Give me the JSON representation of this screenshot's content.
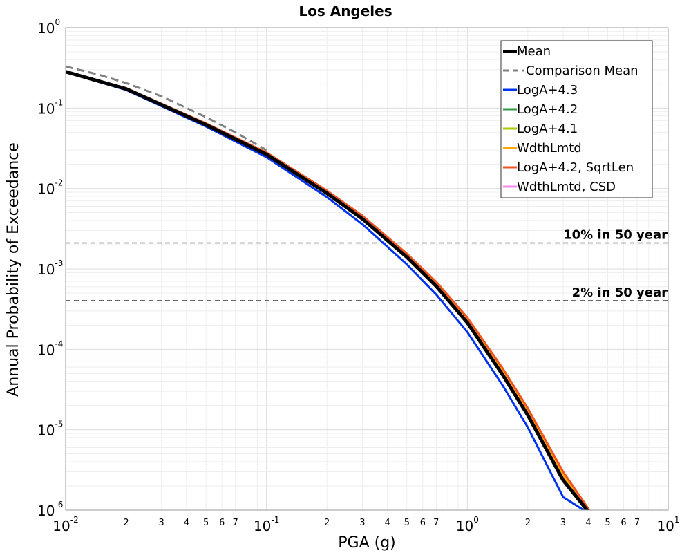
{
  "chart_data": {
    "type": "line",
    "title": "Los Angeles",
    "xlabel": "PGA (g)",
    "ylabel": "Annual Probability of Exceedance",
    "xscale": "log",
    "yscale": "log",
    "xlim": [
      0.01,
      10
    ],
    "ylim": [
      1e-06,
      1
    ],
    "x_major_ticks": [
      {
        "base": "10",
        "exp": "-2",
        "value": 0.01
      },
      {
        "base": "10",
        "exp": "-1",
        "value": 0.1
      },
      {
        "base": "10",
        "exp": "0",
        "value": 1
      },
      {
        "base": "10",
        "exp": "1",
        "value": 10
      }
    ],
    "x_minor_tick_labels": [
      "2",
      "3",
      "4",
      "5",
      "6",
      "7"
    ],
    "y_major_ticks": [
      {
        "base": "10",
        "exp": "0",
        "value": 1
      },
      {
        "base": "10",
        "exp": "-1",
        "value": 0.1
      },
      {
        "base": "10",
        "exp": "-2",
        "value": 0.01
      },
      {
        "base": "10",
        "exp": "-3",
        "value": 0.001
      },
      {
        "base": "10",
        "exp": "-4",
        "value": 0.0001
      },
      {
        "base": "10",
        "exp": "-5",
        "value": 1e-05
      },
      {
        "base": "10",
        "exp": "-6",
        "value": 1e-06
      }
    ],
    "grid": true,
    "legend_position": "top-right",
    "reference_lines": [
      {
        "label": "10% in 50 year",
        "y": 0.0021
      },
      {
        "label": "2% in 50 year",
        "y": 0.000404
      }
    ],
    "series": [
      {
        "name": "LogA+4.3",
        "color": "#0033ee",
        "x": [
          0.01,
          0.02,
          0.05,
          0.1,
          0.2,
          0.3,
          0.5,
          0.7,
          1.0,
          1.5,
          2.0,
          3.0,
          3.8
        ],
        "y": [
          0.28,
          0.168,
          0.059,
          0.0245,
          0.0078,
          0.0036,
          0.00114,
          0.00048,
          0.000164,
          3.55e-05,
          1.07e-05,
          1.45e-06,
          1e-06
        ]
      },
      {
        "name": "LogA+4.2",
        "color": "#339944",
        "x": [
          0.01,
          0.02,
          0.05,
          0.1,
          0.2,
          0.3,
          0.5,
          0.7,
          1.0,
          1.5,
          2.0,
          3.0,
          3.95
        ],
        "y": [
          0.283,
          0.173,
          0.062,
          0.0265,
          0.0087,
          0.0042,
          0.0014,
          0.00061,
          0.000215,
          4.8e-05,
          1.52e-05,
          2.35e-06,
          1e-06
        ]
      },
      {
        "name": "LogA+4.1",
        "color": "#aacc00",
        "x": [
          0.01,
          0.02,
          0.05,
          0.1,
          0.2,
          0.3,
          0.5,
          0.7,
          1.0,
          1.5,
          2.0,
          3.0,
          3.95
        ],
        "y": [
          0.284,
          0.174,
          0.0625,
          0.0268,
          0.0088,
          0.00425,
          0.00142,
          0.00062,
          0.000218,
          4.9e-05,
          1.55e-05,
          2.4e-06,
          1e-06
        ]
      },
      {
        "name": "WdthLmtd",
        "color": "#ffaa00",
        "x": [
          0.01,
          0.02,
          0.05,
          0.1,
          0.2,
          0.3,
          0.5,
          0.7,
          1.0,
          1.5,
          2.0,
          3.0,
          4.0
        ],
        "y": [
          0.285,
          0.176,
          0.0635,
          0.0275,
          0.0091,
          0.0044,
          0.00148,
          0.00065,
          0.000232,
          5.3e-05,
          1.68e-05,
          2.7e-06,
          1e-06
        ]
      },
      {
        "name": "LogA+4.2, SqrtLen",
        "color": "#ee5522",
        "x": [
          0.01,
          0.02,
          0.05,
          0.1,
          0.2,
          0.3,
          0.5,
          0.7,
          1.0,
          1.5,
          2.0,
          3.0,
          4.05
        ],
        "y": [
          0.285,
          0.177,
          0.0645,
          0.028,
          0.0094,
          0.0046,
          0.00155,
          0.00069,
          0.000248,
          5.8e-05,
          1.85e-05,
          3e-06,
          1e-06
        ]
      },
      {
        "name": "WdthLmtd, CSD",
        "color": "#ff88ee",
        "x": [
          0.01,
          0.02,
          0.05,
          0.1,
          0.2,
          0.3,
          0.5,
          0.7,
          1.0,
          1.5,
          2.0,
          3.0,
          3.95
        ],
        "y": [
          0.283,
          0.173,
          0.062,
          0.0265,
          0.0087,
          0.0042,
          0.0014,
          0.00061,
          0.000215,
          4.8e-05,
          1.52e-05,
          2.35e-06,
          1e-06
        ]
      },
      {
        "name": "Comparison Mean",
        "color": "#808080",
        "dashed": true,
        "x": [
          0.01,
          0.015,
          0.02,
          0.03,
          0.05,
          0.07,
          0.1
        ],
        "y": [
          0.33,
          0.255,
          0.205,
          0.14,
          0.077,
          0.05,
          0.03
        ]
      },
      {
        "name": "Mean",
        "color": "#000000",
        "x": [
          0.01,
          0.02,
          0.05,
          0.1,
          0.2,
          0.3,
          0.5,
          0.7,
          1.0,
          1.5,
          2.0,
          3.0,
          3.95
        ],
        "y": [
          0.283,
          0.173,
          0.062,
          0.0265,
          0.0087,
          0.0042,
          0.0014,
          0.00061,
          0.000215,
          4.8e-05,
          1.52e-05,
          2.35e-06,
          1e-06
        ]
      }
    ],
    "legend_order": [
      "Mean",
      "Comparison Mean",
      "LogA+4.3",
      "LogA+4.2",
      "LogA+4.1",
      "WdthLmtd",
      "LogA+4.2, SqrtLen",
      "WdthLmtd, CSD"
    ]
  }
}
